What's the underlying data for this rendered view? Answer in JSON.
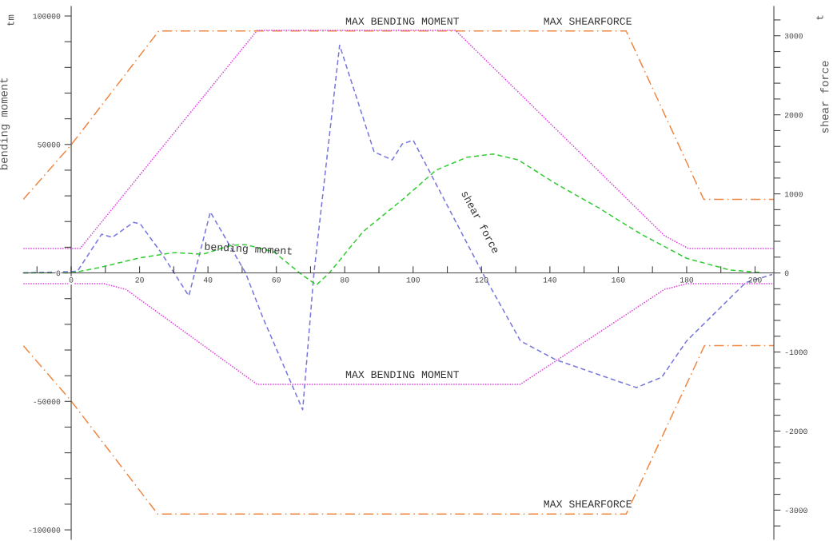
{
  "chart_data": {
    "type": "line",
    "ylabel": "bending moment",
    "y2label": "shear force",
    "xlim": [
      -14,
      205.5
    ],
    "ylim": [
      -103700,
      103700
    ],
    "y2lim": [
      -3370,
      3370
    ],
    "xticks": [
      {
        "value": -10,
        "label": null
      },
      0,
      {
        "value": 10,
        "label": null
      },
      20,
      {
        "value": 30,
        "label": null
      },
      40,
      {
        "value": 50,
        "label": null
      },
      60,
      {
        "value": 70,
        "label": null
      },
      80,
      {
        "value": 90,
        "label": null
      },
      100,
      {
        "value": 110,
        "label": null
      },
      120,
      {
        "value": 130,
        "label": null
      },
      140,
      {
        "value": 150,
        "label": null
      },
      160,
      {
        "value": 170,
        "label": null
      },
      180,
      {
        "value": 190,
        "label": null
      },
      200
    ],
    "yticks": [
      -100000,
      {
        "value": -90000,
        "label": null
      },
      {
        "value": -80000,
        "label": null
      },
      {
        "value": -70000,
        "label": null
      },
      {
        "value": -60000,
        "label": null
      },
      -50000,
      {
        "value": -40000,
        "label": null
      },
      {
        "value": -30000,
        "label": null
      },
      {
        "value": -20000,
        "label": null
      },
      {
        "value": -10000,
        "label": null
      },
      0,
      {
        "value": 10000,
        "label": null
      },
      {
        "value": 20000,
        "label": null
      },
      {
        "value": 30000,
        "label": null
      },
      {
        "value": 40000,
        "label": null
      },
      50000,
      {
        "value": 60000,
        "label": null
      },
      {
        "value": 70000,
        "label": null
      },
      {
        "value": 80000,
        "label": null
      },
      {
        "value": 90000,
        "label": null
      },
      100000
    ],
    "y2ticks": [
      {
        "value": -3200,
        "label": null
      },
      -3000,
      {
        "value": -2800,
        "label": null
      },
      {
        "value": -2600,
        "label": null
      },
      {
        "value": -2400,
        "label": null
      },
      {
        "value": -2200,
        "label": null
      },
      -2000,
      {
        "value": -1800,
        "label": null
      },
      {
        "value": -1600,
        "label": null
      },
      {
        "value": -1400,
        "label": null
      },
      {
        "value": -1200,
        "label": null
      },
      -1000,
      {
        "value": -800,
        "label": null
      },
      {
        "value": -600,
        "label": null
      },
      {
        "value": -400,
        "label": null
      },
      {
        "value": -200,
        "label": null
      },
      0,
      {
        "value": 200,
        "label": null
      },
      {
        "value": 400,
        "label": null
      },
      {
        "value": 600,
        "label": null
      },
      {
        "value": 800,
        "label": null
      },
      1000,
      {
        "value": 1200,
        "label": null
      },
      {
        "value": 1400,
        "label": null
      },
      {
        "value": 1600,
        "label": null
      },
      {
        "value": 1800,
        "label": null
      },
      2000,
      {
        "value": 2200,
        "label": null
      },
      {
        "value": 2400,
        "label": null
      },
      {
        "value": 2600,
        "label": null
      },
      {
        "value": 2800,
        "label": null
      },
      3000,
      {
        "value": 3200,
        "label": null
      }
    ],
    "grid": false,
    "legend": false,
    "series": [
      {
        "color": "#ee8844",
        "line_style": "dashdot",
        "axis": "y2",
        "x": [
          -14,
          0,
          25.6,
          162.3,
          185,
          205.5
        ],
        "values": [
          930,
          1620,
          3060,
          3060,
          930,
          930
        ]
      },
      {
        "color": "#ee8844",
        "line_style": "dashdot",
        "axis": "y2",
        "x": [
          -14,
          0,
          25.3,
          162.3,
          185.2,
          205.5
        ],
        "values": [
          -920,
          -1620,
          -3050,
          -3050,
          -920,
          -920
        ]
      },
      {
        "color": "#dd44dd",
        "line_style": "dotted",
        "x": [
          -14,
          2.6,
          54.4,
          112.4,
          173.5,
          180.5,
          205.5
        ],
        "values": [
          9500,
          9500,
          94400,
          94400,
          14500,
          9500,
          9500
        ]
      },
      {
        "color": "#dd44dd",
        "line_style": "dotted",
        "x": [
          -14,
          9.6,
          16,
          54.4,
          131.3,
          173.5,
          180,
          205.5
        ],
        "values": [
          -4200,
          -4200,
          -6400,
          -43400,
          -43400,
          -6400,
          -4200,
          -4200
        ]
      },
      {
        "color": "#33cc33",
        "line_style": "dashed",
        "x": [
          -14,
          0,
          8,
          19.8,
          30,
          38.5,
          47,
          51,
          59.3,
          66.8,
          71.7,
          75.5,
          85.3,
          97.3,
          106.7,
          115.7,
          123.4,
          130.7,
          141.8,
          154.3,
          166.8,
          180,
          192.7,
          201.3
        ],
        "values": [
          0,
          0,
          2000,
          5800,
          7900,
          7300,
          10800,
          11000,
          8200,
          0,
          -4700,
          0,
          16000,
          29000,
          40000,
          45000,
          46300,
          44000,
          34700,
          25300,
          15000,
          5700,
          1100,
          200
        ]
      },
      {
        "color": "#7777dd",
        "line_style": "dashed",
        "axis": "y2",
        "x": [
          -14,
          1.8,
          8.9,
          12,
          18.3,
          20.2,
          26.4,
          34.4,
          40.7,
          51,
          56,
          67.7,
          71,
          78.5,
          88.6,
          93.9,
          96.8,
          100,
          120.3,
          131.4,
          141.8,
          165.3,
          172.7,
          180,
          197.3,
          205
        ],
        "values": [
          0,
          20,
          490,
          450,
          640,
          620,
          250,
          -290,
          770,
          0,
          -560,
          -1730,
          0,
          2880,
          1530,
          1430,
          1630,
          1680,
          0,
          -860,
          -1100,
          -1450,
          -1320,
          -860,
          -120,
          -20
        ]
      }
    ],
    "annotations": [
      "tm",
      "t",
      "MAX BENDING MOMENT",
      "MAX SHEARFORCE",
      "MAX BENDING MOMENT",
      "MAX SHEARFORCE",
      "bending moment",
      "shear force"
    ]
  }
}
